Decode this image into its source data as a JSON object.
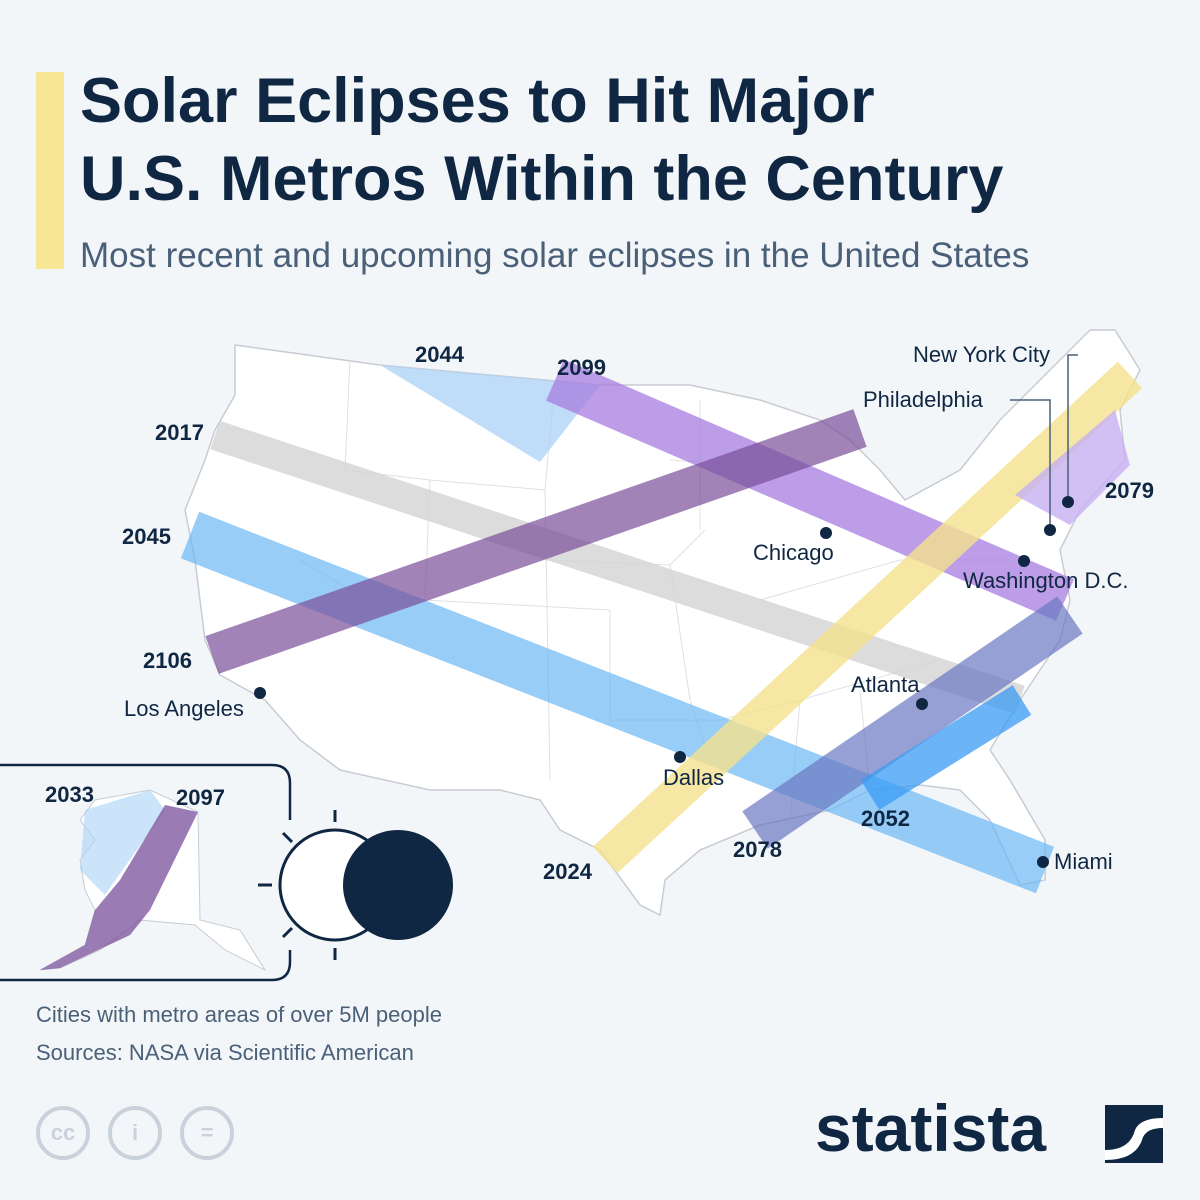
{
  "title_line1": "Solar Eclipses to Hit Major",
  "title_line2": "U.S. Metros Within the Century",
  "subtitle": "Most recent and upcoming solar eclipses in the United States",
  "eclipses": {
    "y2017": "2017",
    "y2044": "2044",
    "y2099": "2099",
    "y2045": "2045",
    "y2106": "2106",
    "y2024": "2024",
    "y2079": "2079",
    "y2078": "2078",
    "y2052": "2052",
    "y2033": "2033",
    "y2097": "2097"
  },
  "cities": {
    "nyc": "New York City",
    "philadelphia": "Philadelphia",
    "chicago": "Chicago",
    "washington": "Washington D.C.",
    "los_angeles": "Los Angeles",
    "atlanta": "Atlanta",
    "dallas": "Dallas",
    "miami": "Miami"
  },
  "colors": {
    "y2017": "#d6d6d6",
    "y2044": "#a9d2f7",
    "y2099": "#a77de0",
    "y2045": "#6cb8f5",
    "y2106": "#7a4f9a",
    "y2024": "#f5e28e",
    "y2079": "#c7b0f2",
    "y2078": "#6b78c2",
    "y2052": "#3a9cf5",
    "accent": "#f7e695",
    "navy": "#0f2742"
  },
  "footnote": "Cities with metro areas of over 5M people",
  "source": "Sources: NASA via Scientific American",
  "license_icons": [
    "cc-icon",
    "attribution-icon",
    "no-derivatives-icon"
  ],
  "brand": "statista"
}
